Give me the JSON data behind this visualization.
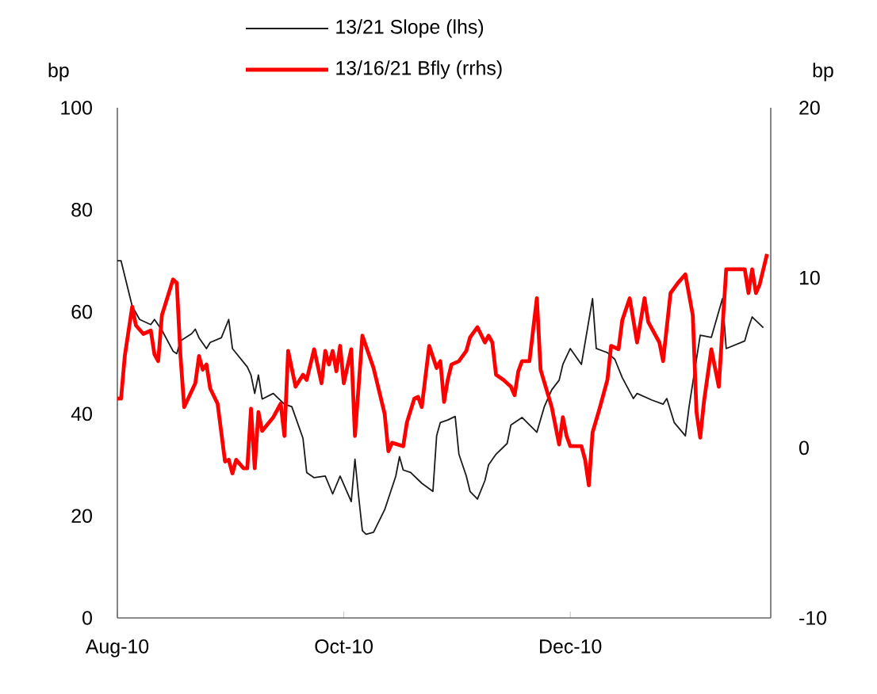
{
  "chart_data": {
    "type": "line",
    "ylabel": "bp",
    "y2label": "bp",
    "legend": "top",
    "xlim": [
      "2010-08-01",
      "2011-01-24"
    ],
    "xticks": [
      {
        "value": "2010-08-01",
        "label": "Aug-10"
      },
      {
        "value": "2010-10-01",
        "label": "Oct-10"
      },
      {
        "value": "2010-12-01",
        "label": "Dec-10"
      }
    ],
    "ylim": [
      0,
      100
    ],
    "yticks": [
      0,
      20,
      40,
      60,
      80,
      100
    ],
    "y2lim": [
      -10,
      20
    ],
    "y2ticks": [
      -10,
      0,
      10,
      20
    ],
    "series": [
      {
        "name": "13/21 Slope (lhs)",
        "color": "#1a1a1a",
        "x": [
          "2010-08-01",
          "2010-08-02",
          "2010-08-05",
          "2010-08-07",
          "2010-08-10",
          "2010-08-11",
          "2010-08-13",
          "2010-08-16",
          "2010-08-17",
          "2010-08-18",
          "2010-08-21",
          "2010-08-22",
          "2010-08-23",
          "2010-08-25",
          "2010-08-26",
          "2010-08-29",
          "2010-08-31",
          "2010-09-01",
          "2010-09-05",
          "2010-09-06",
          "2010-09-07",
          "2010-09-08",
          "2010-09-09",
          "2010-09-12",
          "2010-09-15",
          "2010-09-17",
          "2010-09-20",
          "2010-09-21",
          "2010-09-23",
          "2010-09-26",
          "2010-09-28",
          "2010-09-30",
          "2010-10-03",
          "2010-10-04",
          "2010-10-05",
          "2010-10-06",
          "2010-10-07",
          "2010-10-09",
          "2010-10-12",
          "2010-10-15",
          "2010-10-16",
          "2010-10-17",
          "2010-10-19",
          "2010-10-22",
          "2010-10-25",
          "2010-10-26",
          "2010-10-27",
          "2010-10-29",
          "2010-10-31",
          "2010-11-01",
          "2010-11-03",
          "2010-11-04",
          "2010-11-06",
          "2010-11-08",
          "2010-11-09",
          "2010-11-11",
          "2010-11-14",
          "2010-11-15",
          "2010-11-18",
          "2010-11-22",
          "2010-11-24",
          "2010-11-26",
          "2010-11-28",
          "2010-11-29",
          "2010-12-01",
          "2010-12-04",
          "2010-12-07",
          "2010-12-08",
          "2010-12-11",
          "2010-12-13",
          "2010-12-15",
          "2010-12-18",
          "2010-12-19",
          "2010-12-23",
          "2010-12-26",
          "2010-12-27",
          "2010-12-29",
          "2011-01-01",
          "2011-01-02",
          "2011-01-05",
          "2011-01-08",
          "2011-01-11",
          "2011-01-12",
          "2011-01-17",
          "2011-01-18",
          "2011-01-19",
          "2011-01-22"
        ],
        "values": [
          70,
          70,
          61.1,
          58.5,
          57.5,
          58.5,
          56.4,
          52.3,
          51.8,
          54.3,
          55.7,
          56.6,
          54.9,
          52.8,
          54.0,
          54.9,
          58.5,
          52.8,
          49.2,
          47.6,
          44.0,
          47.6,
          42.9,
          44.0,
          41.9,
          41.4,
          35.2,
          28.5,
          27.5,
          27.8,
          24.3,
          27.8,
          22.8,
          31.1,
          23.8,
          17.1,
          16.4,
          16.8,
          21.2,
          27.8,
          31.6,
          29.0,
          28.5,
          26.4,
          24.8,
          35.7,
          38.3,
          38.8,
          39.5,
          32.1,
          27.8,
          24.8,
          23.3,
          26.9,
          30.0,
          32.1,
          34.2,
          37.8,
          39.3,
          36.4,
          41.4,
          44.7,
          46.6,
          49.7,
          52.8,
          49.7,
          62.6,
          52.8,
          52.0,
          50.7,
          47.1,
          43.0,
          44.0,
          42.7,
          41.9,
          43.0,
          38.3,
          35.7,
          41.4,
          55.4,
          55.0,
          62.6,
          52.8,
          54.3,
          56.9,
          59.0,
          56.9
        ]
      },
      {
        "name": "13/16/21 Bfly (rrhs)",
        "color": "#ff0000",
        "axis": "y2",
        "x": [
          "2010-08-01",
          "2010-08-02",
          "2010-08-03",
          "2010-08-05",
          "2010-08-06",
          "2010-08-08",
          "2010-08-10",
          "2010-08-11",
          "2010-08-12",
          "2010-08-13",
          "2010-08-16",
          "2010-08-17",
          "2010-08-18",
          "2010-08-19",
          "2010-08-22",
          "2010-08-23",
          "2010-08-24",
          "2010-08-25",
          "2010-08-26",
          "2010-08-28",
          "2010-08-30",
          "2010-08-31",
          "2010-09-01",
          "2010-09-02",
          "2010-09-04",
          "2010-09-05",
          "2010-09-06",
          "2010-09-07",
          "2010-09-08",
          "2010-09-09",
          "2010-09-12",
          "2010-09-14",
          "2010-09-15",
          "2010-09-16",
          "2010-09-18",
          "2010-09-20",
          "2010-09-21",
          "2010-09-23",
          "2010-09-25",
          "2010-09-26",
          "2010-09-27",
          "2010-09-28",
          "2010-09-29",
          "2010-09-30",
          "2010-10-01",
          "2010-10-03",
          "2010-10-04",
          "2010-10-06",
          "2010-10-09",
          "2010-10-12",
          "2010-10-13",
          "2010-10-14",
          "2010-10-17",
          "2010-10-18",
          "2010-10-20",
          "2010-10-21",
          "2010-10-22",
          "2010-10-24",
          "2010-10-26",
          "2010-10-27",
          "2010-10-28",
          "2010-10-29",
          "2010-10-30",
          "2010-11-01",
          "2010-11-03",
          "2010-11-04",
          "2010-11-06",
          "2010-11-08",
          "2010-11-09",
          "2010-11-10",
          "2010-11-11",
          "2010-11-13",
          "2010-11-15",
          "2010-11-16",
          "2010-11-17",
          "2010-11-18",
          "2010-11-20",
          "2010-11-22",
          "2010-11-23",
          "2010-11-26",
          "2010-11-28",
          "2010-11-29",
          "2010-11-30",
          "2010-12-01",
          "2010-12-04",
          "2010-12-05",
          "2010-12-06",
          "2010-12-07",
          "2010-12-09",
          "2010-12-11",
          "2010-12-12",
          "2010-12-14",
          "2010-12-15",
          "2010-12-17",
          "2010-12-19",
          "2010-12-21",
          "2010-12-22",
          "2010-12-25",
          "2010-12-26",
          "2010-12-28",
          "2010-12-30",
          "2011-01-01",
          "2011-01-03",
          "2011-01-04",
          "2011-01-05",
          "2011-01-06",
          "2011-01-08",
          "2011-01-10",
          "2011-01-12",
          "2011-01-17",
          "2011-01-18",
          "2011-01-19",
          "2011-01-20",
          "2011-01-21",
          "2011-01-23"
        ],
        "values": [
          2.9,
          2.9,
          5.4,
          8.3,
          7.2,
          6.7,
          6.9,
          5.5,
          5.1,
          7.8,
          9.9,
          9.7,
          5.4,
          2.4,
          3.8,
          5.4,
          4.6,
          4.9,
          3.5,
          2.6,
          -0.8,
          -0.7,
          -1.5,
          -0.7,
          -1.2,
          -1.2,
          2.3,
          -1.2,
          2.1,
          1.0,
          1.8,
          2.6,
          0.7,
          5.7,
          3.6,
          4.3,
          4.0,
          5.8,
          3.8,
          5.7,
          4.9,
          5.7,
          4.5,
          6.0,
          3.8,
          5.8,
          0.7,
          6.6,
          4.7,
          2.0,
          -0.2,
          0.3,
          0.1,
          1.5,
          2.9,
          3.0,
          2.4,
          6.0,
          4.7,
          5.1,
          2.7,
          4.0,
          4.9,
          5.1,
          5.7,
          6.5,
          7.1,
          6.2,
          6.6,
          6.2,
          4.3,
          4.0,
          3.6,
          3.1,
          4.5,
          5.1,
          5.1,
          8.8,
          4.6,
          2.4,
          0.2,
          1.8,
          0.7,
          0.1,
          0.1,
          -0.7,
          -2.2,
          0.9,
          2.4,
          4.0,
          6.0,
          5.8,
          7.5,
          8.8,
          6.2,
          8.8,
          7.4,
          6.2,
          5.1,
          9.1,
          9.7,
          10.2,
          7.8,
          2.1,
          0.6,
          2.7,
          5.8,
          3.6,
          10.5,
          10.5,
          9.1,
          10.5,
          9.1,
          9.6,
          11.4
        ]
      }
    ]
  }
}
